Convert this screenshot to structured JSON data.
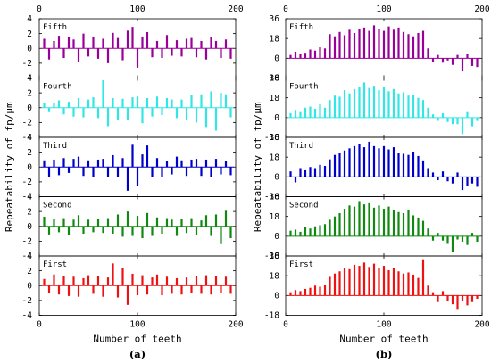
{
  "chart_data": [
    {
      "type": "bar",
      "caption": "(a)",
      "xlabel": "Number of teeth",
      "ylabel": "Repeatability of fp/μm",
      "xlim": [
        0,
        200
      ],
      "ylim": [
        -4,
        4
      ],
      "yticks": [
        -4,
        -2,
        0,
        2,
        4
      ],
      "xticks": [
        0,
        100,
        200
      ],
      "series": [
        {
          "name": "Fifth",
          "color": "#990099",
          "x": [
            5,
            10,
            15,
            20,
            25,
            30,
            35,
            40,
            45,
            50,
            55,
            60,
            65,
            70,
            75,
            80,
            85,
            90,
            95,
            100,
            105,
            110,
            115,
            120,
            125,
            130,
            135,
            140,
            145,
            150,
            155,
            160,
            165,
            170,
            175,
            180,
            185,
            190,
            195
          ],
          "values": [
            1.3,
            -1.5,
            1.0,
            1.7,
            -1.3,
            1.5,
            1.2,
            -1.8,
            2.0,
            -1.1,
            1.6,
            -1.4,
            1.3,
            -2.0,
            2.1,
            1.4,
            -1.6,
            2.4,
            2.9,
            -2.6,
            1.6,
            2.2,
            -1.2,
            1.0,
            -1.3,
            1.8,
            -1.0,
            1.1,
            -1.1,
            1.3,
            1.4,
            -1.2,
            1.0,
            -1.5,
            1.5,
            1.0,
            -1.3,
            1.2,
            -1.4
          ]
        },
        {
          "name": "Fourth",
          "color": "#33e6e6",
          "x": [
            5,
            10,
            15,
            20,
            25,
            30,
            35,
            40,
            45,
            50,
            55,
            60,
            65,
            70,
            75,
            80,
            85,
            90,
            95,
            100,
            105,
            110,
            115,
            120,
            125,
            130,
            135,
            140,
            145,
            150,
            155,
            160,
            165,
            170,
            175,
            180,
            185,
            190,
            195
          ],
          "values": [
            0.6,
            -0.6,
            0.7,
            1.0,
            -0.9,
            0.8,
            -1.2,
            1.3,
            -1.3,
            1.1,
            1.4,
            -1.4,
            3.7,
            -2.5,
            1.3,
            -1.6,
            1.2,
            -1.6,
            1.4,
            1.5,
            -2.1,
            1.3,
            -1.2,
            1.5,
            -1.0,
            1.3,
            1.1,
            -1.4,
            1.1,
            -1.6,
            1.7,
            -2.0,
            1.8,
            -2.6,
            2.2,
            -3.1,
            2.0,
            1.8,
            -1.3
          ]
        },
        {
          "name": "Third",
          "color": "#0000cc",
          "x": [
            5,
            10,
            15,
            20,
            25,
            30,
            35,
            40,
            45,
            50,
            55,
            60,
            65,
            70,
            75,
            80,
            85,
            90,
            95,
            100,
            105,
            110,
            115,
            120,
            125,
            130,
            135,
            140,
            145,
            150,
            155,
            160,
            165,
            170,
            175,
            180,
            185,
            190,
            195
          ],
          "values": [
            0.9,
            -1.3,
            1.0,
            -1.1,
            1.2,
            -0.8,
            1.1,
            1.4,
            -1.2,
            0.9,
            -1.3,
            1.0,
            1.1,
            -1.4,
            1.6,
            -1.3,
            1.2,
            -3.2,
            3.0,
            -2.5,
            1.7,
            2.9,
            -1.4,
            1.2,
            -1.4,
            0.8,
            -1.0,
            1.4,
            0.9,
            -1.2,
            1.0,
            1.1,
            -1.2,
            1.0,
            -1.3,
            1.1,
            -1.0,
            0.8,
            -1.1
          ]
        },
        {
          "name": "Second",
          "color": "#118811",
          "x": [
            5,
            10,
            15,
            20,
            25,
            30,
            35,
            40,
            45,
            50,
            55,
            60,
            65,
            70,
            75,
            80,
            85,
            90,
            95,
            100,
            105,
            110,
            115,
            120,
            125,
            130,
            135,
            140,
            145,
            150,
            155,
            160,
            165,
            170,
            175,
            180,
            185,
            190,
            195
          ],
          "values": [
            1.3,
            -1.1,
            1.0,
            -0.8,
            1.1,
            -1.2,
            0.9,
            1.5,
            -1.0,
            0.9,
            -0.8,
            1.0,
            -0.9,
            1.1,
            -1.0,
            1.6,
            -1.4,
            2.0,
            -1.3,
            1.4,
            -1.6,
            1.8,
            -1.3,
            1.2,
            -1.0,
            1.1,
            0.9,
            -1.3,
            1.0,
            -0.9,
            1.1,
            -1.2,
            0.8,
            1.5,
            -1.3,
            1.6,
            -2.4,
            2.1,
            -1.6
          ]
        },
        {
          "name": "First",
          "color": "#ee1111",
          "x": [
            5,
            10,
            15,
            20,
            25,
            30,
            35,
            40,
            45,
            50,
            55,
            60,
            65,
            70,
            75,
            80,
            85,
            90,
            95,
            100,
            105,
            110,
            115,
            120,
            125,
            130,
            135,
            140,
            145,
            150,
            155,
            160,
            165,
            170,
            175,
            180,
            185,
            190,
            195
          ],
          "values": [
            0.9,
            -1.0,
            1.5,
            -1.2,
            1.3,
            -1.4,
            1.2,
            -1.5,
            1.0,
            1.4,
            -1.1,
            1.3,
            -1.5,
            1.1,
            3.0,
            -1.6,
            2.4,
            -2.6,
            1.6,
            -1.3,
            1.4,
            -1.2,
            1.1,
            1.5,
            -1.3,
            1.2,
            -1.1,
            1.0,
            -1.2,
            1.1,
            -1.0,
            1.3,
            -1.1,
            1.4,
            -1.2,
            1.3,
            -1.0,
            1.2,
            -1.1
          ]
        }
      ]
    },
    {
      "type": "bar",
      "caption": "(b)",
      "xlabel": "Number of teeth",
      "ylabel": "Repeatability of fp/μm",
      "xlim": [
        0,
        200
      ],
      "ylim": [
        -18,
        36
      ],
      "yticks": [
        -18,
        0,
        18,
        36
      ],
      "xticks": [
        0,
        100,
        200
      ],
      "series": [
        {
          "name": "Fifth",
          "color": "#990099",
          "x": [
            5,
            10,
            15,
            20,
            25,
            30,
            35,
            40,
            45,
            50,
            55,
            60,
            65,
            70,
            75,
            80,
            85,
            90,
            95,
            100,
            105,
            110,
            115,
            120,
            125,
            130,
            135,
            140,
            145,
            150,
            155,
            160,
            165,
            170,
            175,
            180,
            185,
            190,
            195
          ],
          "values": [
            3,
            6,
            4,
            5,
            8,
            7,
            10,
            9,
            22,
            20,
            24,
            21,
            26,
            23,
            27,
            28,
            25,
            30,
            27,
            25,
            29,
            26,
            28,
            24,
            22,
            20,
            23,
            25,
            9,
            -3,
            3,
            -4,
            -2,
            -6,
            3,
            -12,
            4,
            -7,
            -8
          ]
        },
        {
          "name": "Fourth",
          "color": "#33e6e6",
          "x": [
            5,
            10,
            15,
            20,
            25,
            30,
            35,
            40,
            45,
            50,
            55,
            60,
            65,
            70,
            75,
            80,
            85,
            90,
            95,
            100,
            105,
            110,
            115,
            120,
            125,
            130,
            135,
            140,
            145,
            150,
            155,
            160,
            165,
            170,
            175,
            180,
            185,
            190,
            195
          ],
          "values": [
            4,
            7,
            5,
            9,
            10,
            8,
            12,
            9,
            16,
            20,
            19,
            25,
            22,
            26,
            28,
            32,
            27,
            29,
            25,
            28,
            24,
            26,
            22,
            23,
            20,
            21,
            18,
            16,
            9,
            3,
            -3,
            4,
            -4,
            -6,
            -6,
            -15,
            5,
            -8,
            -3
          ]
        },
        {
          "name": "Third",
          "color": "#0000cc",
          "x": [
            5,
            10,
            15,
            20,
            25,
            30,
            35,
            40,
            45,
            50,
            55,
            60,
            65,
            70,
            75,
            80,
            85,
            90,
            95,
            100,
            105,
            110,
            115,
            120,
            125,
            130,
            135,
            140,
            145,
            150,
            155,
            160,
            165,
            170,
            175,
            180,
            185,
            190,
            195
          ],
          "values": [
            5,
            -5,
            8,
            6,
            9,
            8,
            11,
            10,
            16,
            20,
            22,
            24,
            26,
            28,
            30,
            27,
            32,
            28,
            26,
            28,
            25,
            27,
            22,
            21,
            20,
            23,
            19,
            15,
            8,
            4,
            -3,
            5,
            -4,
            -6,
            4,
            -12,
            -8,
            -6,
            -9
          ]
        },
        {
          "name": "Second",
          "color": "#118811",
          "x": [
            5,
            10,
            15,
            20,
            25,
            30,
            35,
            40,
            45,
            50,
            55,
            60,
            65,
            70,
            75,
            80,
            85,
            90,
            95,
            100,
            105,
            110,
            115,
            120,
            125,
            130,
            135,
            140,
            145,
            150,
            155,
            160,
            165,
            170,
            175,
            180,
            185,
            190,
            195
          ],
          "values": [
            5,
            6,
            4,
            8,
            7,
            9,
            10,
            11,
            15,
            18,
            21,
            25,
            28,
            27,
            32,
            29,
            30,
            26,
            28,
            25,
            27,
            24,
            22,
            21,
            24,
            19,
            17,
            14,
            7,
            -4,
            3,
            -4,
            -7,
            -14,
            -3,
            -5,
            -8,
            3,
            -5
          ]
        },
        {
          "name": "First",
          "color": "#ee1111",
          "x": [
            5,
            10,
            15,
            20,
            25,
            30,
            35,
            40,
            45,
            50,
            55,
            60,
            65,
            70,
            75,
            80,
            85,
            90,
            95,
            100,
            105,
            110,
            115,
            120,
            125,
            130,
            135,
            140,
            145,
            150,
            155,
            160,
            165,
            170,
            175,
            180,
            185,
            190,
            195
          ],
          "values": [
            3,
            5,
            4,
            6,
            7,
            9,
            8,
            10,
            17,
            20,
            22,
            25,
            24,
            28,
            27,
            30,
            26,
            29,
            25,
            27,
            23,
            25,
            22,
            20,
            21,
            19,
            16,
            33,
            9,
            3,
            -6,
            4,
            -5,
            -8,
            -13,
            -5,
            -9,
            -6,
            -3
          ]
        }
      ]
    }
  ]
}
